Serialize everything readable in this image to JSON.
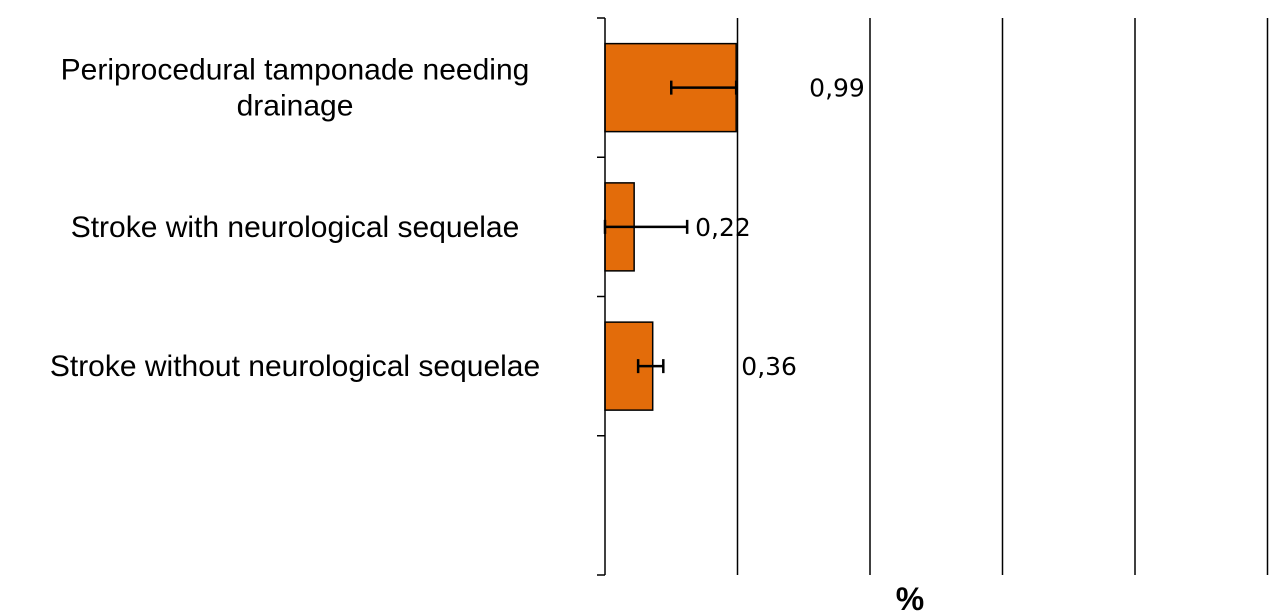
{
  "chart_data": {
    "type": "bar",
    "orientation": "horizontal",
    "categories": [
      [
        "Periprocedural tamponade needing",
        "drainage"
      ],
      [
        "Stroke with neurological sequelae"
      ],
      [
        "Stroke without neurological sequelae"
      ]
    ],
    "values": [
      0.99,
      0.22,
      0.36
    ],
    "value_labels": [
      "0,99",
      "0,22",
      "0,36"
    ],
    "error_low": [
      0.5,
      0.0,
      0.25
    ],
    "error_high": [
      0.99,
      0.62,
      0.44
    ],
    "xlabel": "%",
    "xlim": [
      0,
      5
    ],
    "x_gridlines": [
      1,
      2,
      3,
      4,
      5
    ],
    "bar_color": "#e36c0a",
    "bar_edge_color": "#000000",
    "grid": true,
    "legend": "none"
  }
}
